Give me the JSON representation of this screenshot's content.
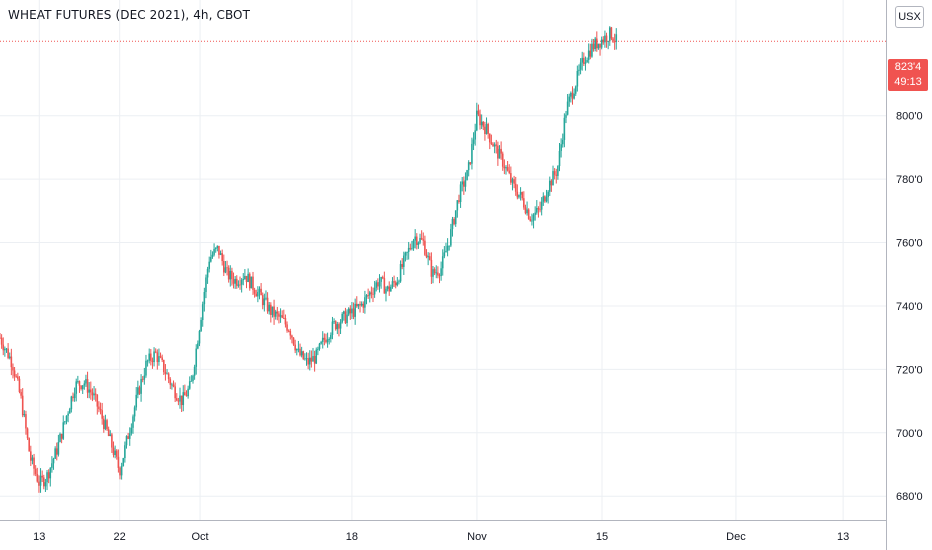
{
  "header": {
    "title": "WHEAT FUTURES (DEC 2021), 4h, CBOT",
    "currency": "USX"
  },
  "last_price": {
    "value": 823.5,
    "label": "823'4",
    "countdown": "49:13"
  },
  "colors": {
    "up": "#26a69a",
    "down": "#ef5350",
    "grid": "#eceff3",
    "axis_text": "#131722",
    "price_line": "#f05350",
    "price_tag_bg": "#f05350"
  },
  "chart_data": {
    "type": "candlestick",
    "title": "WHEAT FUTURES (DEC 2021), 4h, CBOT",
    "ylim": [
      672.5,
      836.5
    ],
    "y_ticks": [
      680,
      700,
      720,
      740,
      760,
      780,
      800
    ],
    "y_tick_labels": [
      "680'0",
      "700'0",
      "720'0",
      "740'0",
      "760'0",
      "780'0",
      "800'0"
    ],
    "x_ticks": [
      {
        "label": "13",
        "day": 0
      },
      {
        "label": "22",
        "day": 9
      },
      {
        "label": "Oct",
        "day": 18
      },
      {
        "label": "18",
        "day": 35
      },
      {
        "label": "Nov",
        "day": 49
      },
      {
        "label": "15",
        "day": 63
      },
      {
        "label": "Dec",
        "day": 78
      },
      {
        "label": "13",
        "day": 90
      }
    ],
    "xlim_days": [
      -4.4,
      94.8
    ],
    "grid": true,
    "trend_points": [
      [
        -4.4,
        730
      ],
      [
        -3,
        722
      ],
      [
        -2,
        710
      ],
      [
        -1,
        692
      ],
      [
        0,
        684
      ],
      [
        0.8,
        686
      ],
      [
        2,
        695
      ],
      [
        3,
        705
      ],
      [
        4,
        715
      ],
      [
        5,
        716
      ],
      [
        6,
        712
      ],
      [
        7,
        705
      ],
      [
        8,
        697
      ],
      [
        9,
        688
      ],
      [
        10,
        700
      ],
      [
        11,
        712
      ],
      [
        12,
        722
      ],
      [
        13,
        725
      ],
      [
        14,
        720
      ],
      [
        15,
        714
      ],
      [
        16,
        710
      ],
      [
        17,
        715
      ],
      [
        18,
        735
      ],
      [
        19,
        755
      ],
      [
        20,
        758
      ],
      [
        21,
        750
      ],
      [
        22,
        748
      ],
      [
        23,
        750
      ],
      [
        24,
        746
      ],
      [
        25,
        742
      ],
      [
        26,
        738
      ],
      [
        27,
        736
      ],
      [
        28,
        733
      ],
      [
        29,
        725
      ],
      [
        30,
        722
      ],
      [
        31,
        724
      ],
      [
        32,
        730
      ],
      [
        33,
        734
      ],
      [
        34,
        736
      ],
      [
        35,
        738
      ],
      [
        36,
        740
      ],
      [
        37,
        744
      ],
      [
        38,
        748
      ],
      [
        39,
        745
      ],
      [
        40,
        748
      ],
      [
        41,
        755
      ],
      [
        42,
        762
      ],
      [
        43,
        760
      ],
      [
        44,
        750
      ],
      [
        45,
        752
      ],
      [
        46,
        762
      ],
      [
        47,
        775
      ],
      [
        48,
        782
      ],
      [
        49,
        800
      ],
      [
        50,
        796
      ],
      [
        51,
        790
      ],
      [
        52,
        785
      ],
      [
        53,
        778
      ],
      [
        54,
        774
      ],
      [
        55,
        768
      ],
      [
        56,
        770
      ],
      [
        57,
        778
      ],
      [
        58,
        783
      ],
      [
        59,
        802
      ],
      [
        60,
        810
      ],
      [
        61,
        818
      ],
      [
        62,
        822
      ],
      [
        63,
        824
      ],
      [
        64,
        826
      ],
      [
        64.6,
        823.5
      ]
    ],
    "candle_count": 381,
    "last_candle_day": 64.6
  }
}
